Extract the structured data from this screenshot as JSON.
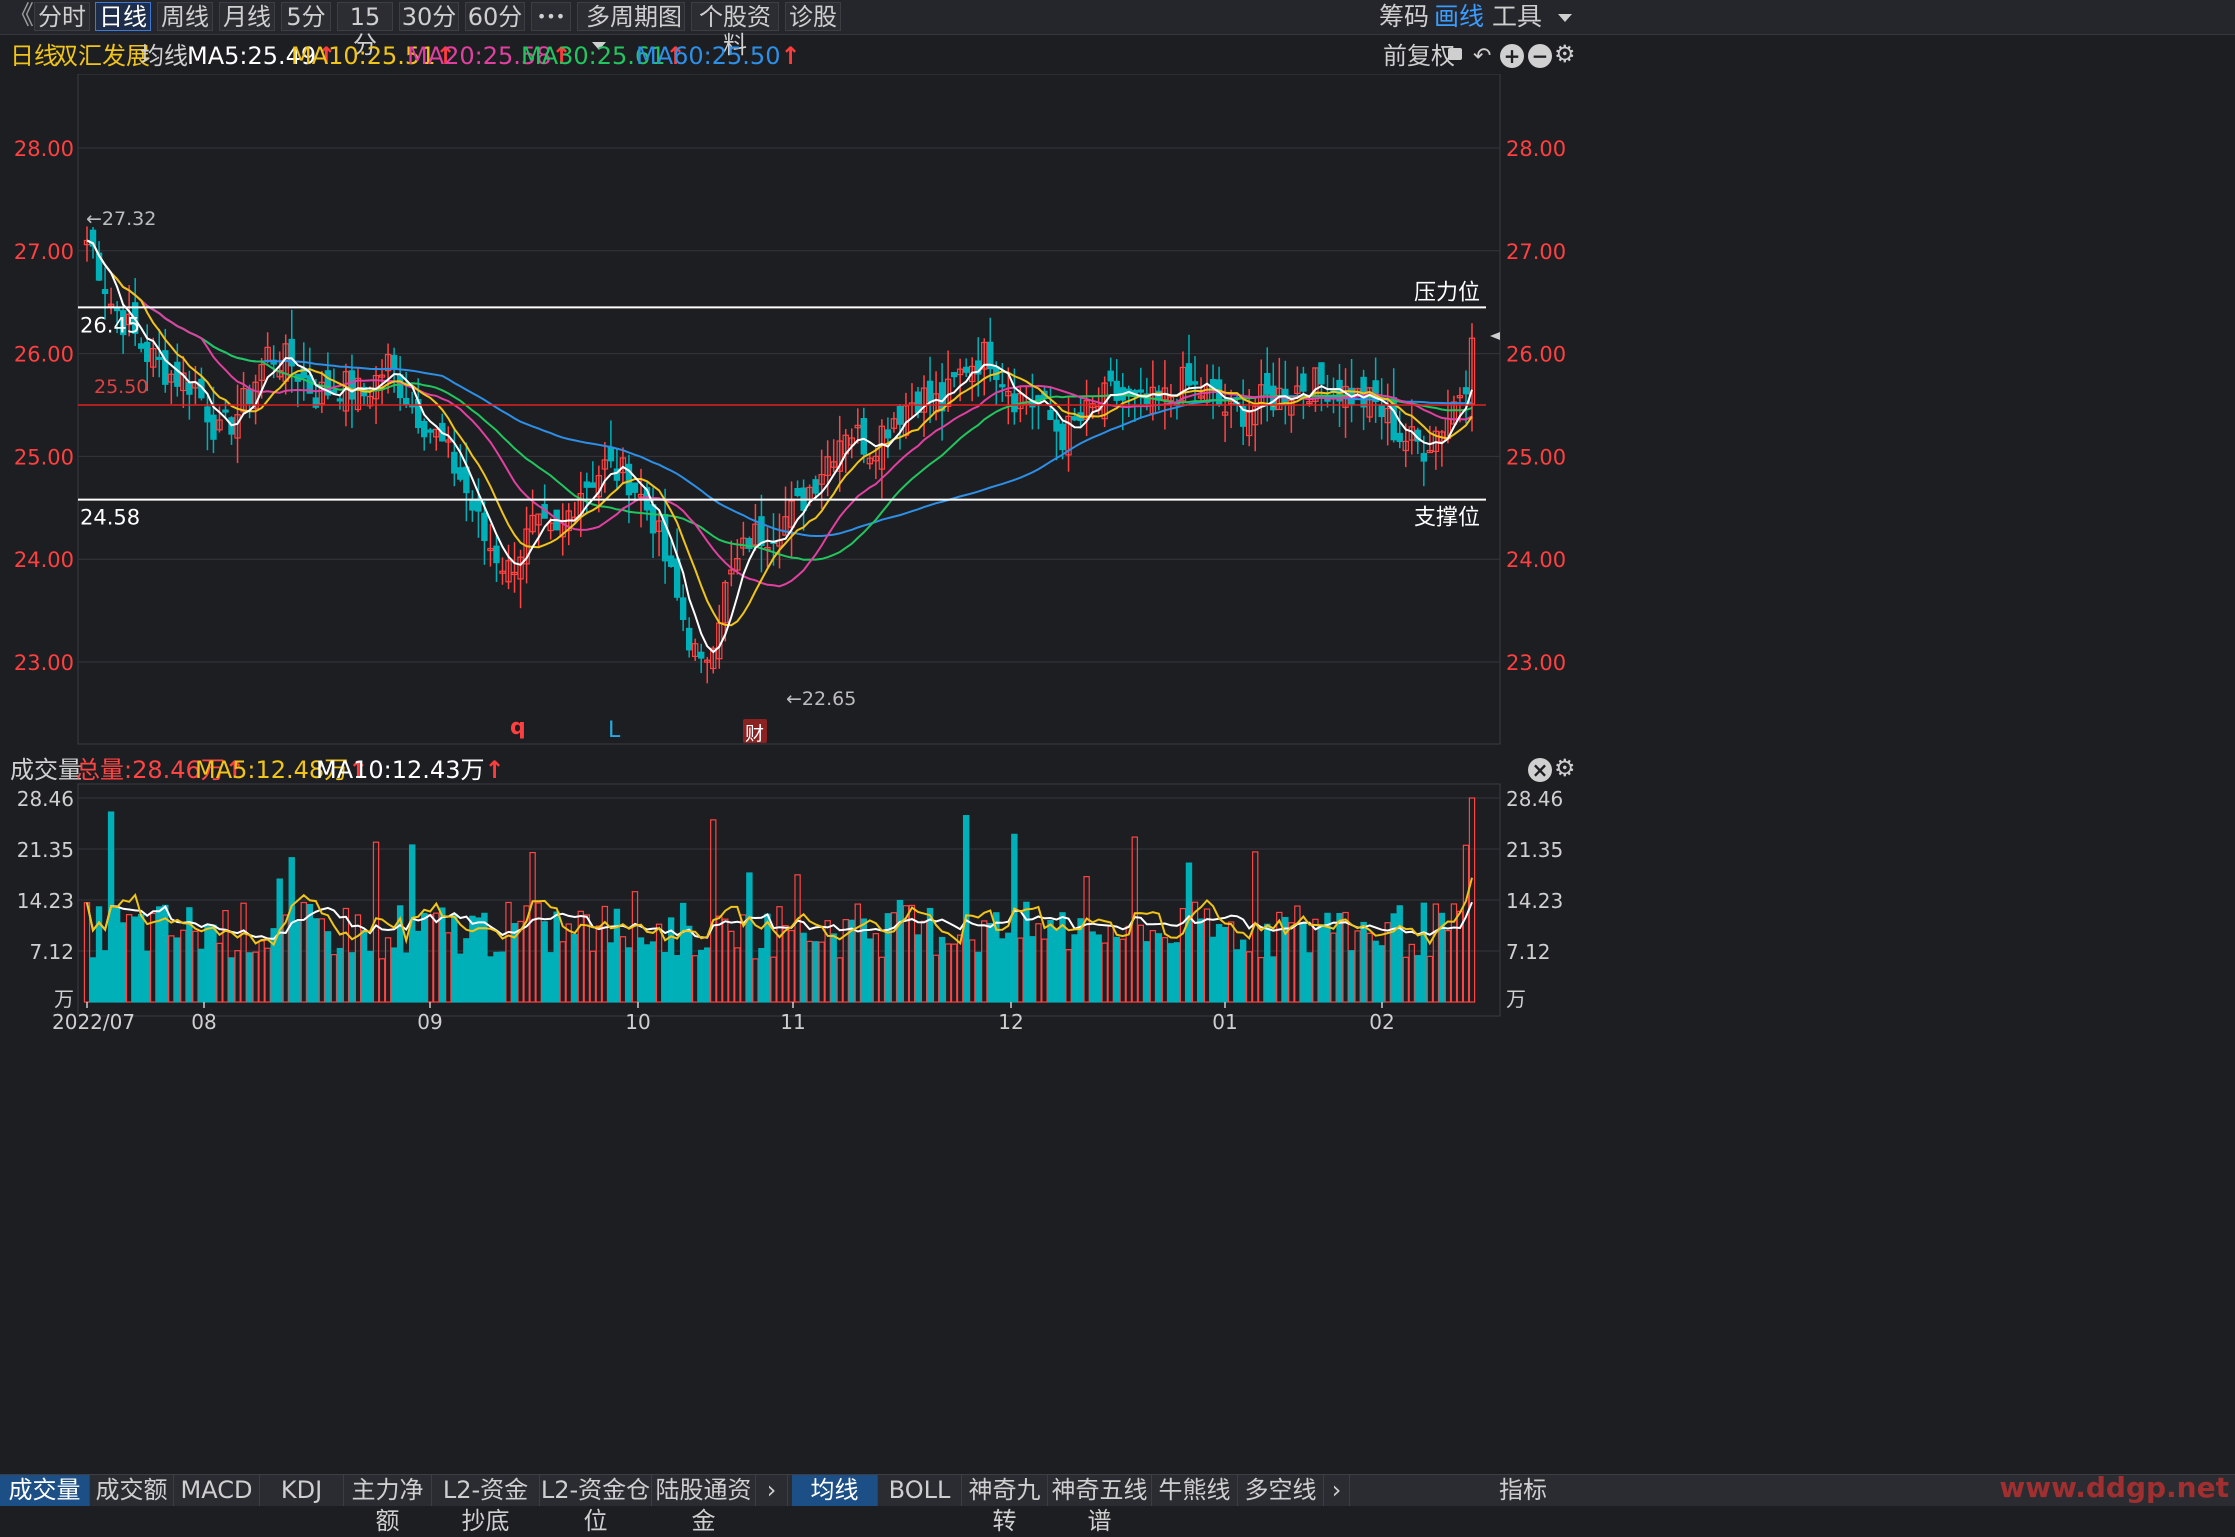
{
  "toolbar": {
    "back_glyph": "《",
    "periods": [
      "分时",
      "日线",
      "周线",
      "月线",
      "5分",
      "15分",
      "30分",
      "60分"
    ],
    "active_period": "日线",
    "more_glyph": "•••",
    "multi_period": "多周期图",
    "stock_info": "个股资料",
    "diagnose": "诊股",
    "chips": "筹码",
    "draw": "画线",
    "tools": "工具"
  },
  "info": {
    "period": "日线",
    "stock_name": "双汇发展",
    "avg_label": "均线",
    "ma5": "MA5:25.49",
    "ma10": "MA10:25.51",
    "ma20": "MA20:25.58",
    "ma30": "MA30:25.61",
    "ma60": "MA60:25.50",
    "adjust": "前复权",
    "up_arrow": "↑",
    "colors": {
      "ma5": "#ffffff",
      "ma10": "#f0c419",
      "ma20": "#e040a0",
      "ma30": "#22c55e",
      "ma60": "#2d8fe6"
    }
  },
  "volume_header": {
    "label": "成交量",
    "total": "总量:28.46万",
    "ma5": "MA5:12.48万",
    "ma10": "MA10:12.43万"
  },
  "bottom_tabs": {
    "left": [
      "成交量",
      "成交额",
      "MACD",
      "KDJ",
      "主力净额",
      "L2-资金抄底",
      "L2-资金仓位",
      "陆股通资金"
    ],
    "right": [
      "均线",
      "BOLL",
      "神奇九转",
      "神奇五线谱",
      "牛熊线",
      "多空线"
    ],
    "active_left": "成交量",
    "active_right": "均线",
    "more_glyph": "›",
    "watermark": "www.ddgp.net",
    "indicator_label": "指标"
  },
  "chart_data": {
    "type": "candlestick",
    "price_axis": {
      "ticks": [
        "28.00",
        "27.00",
        "26.00",
        "25.00",
        "24.00",
        "23.00"
      ],
      "ylim": [
        22.2,
        28.6
      ]
    },
    "date_labels": [
      "2022/07",
      "08",
      "09",
      "10",
      "11",
      "12",
      "01",
      "02"
    ],
    "annotations": {
      "high_marker": "←27.32",
      "low_marker": "←22.65",
      "resistance_label": "压力位",
      "resistance_value": "26.45",
      "support_label": "支撑位",
      "support_value": "24.58",
      "ref_value": "25.50",
      "marker_q": "q",
      "marker_L": "L",
      "marker_cai": "财"
    },
    "levels": {
      "resistance": 26.45,
      "support": 24.58,
      "reference": 25.5
    },
    "volume_axis": {
      "ticks": [
        "28.46",
        "21.35",
        "14.23",
        "7.12"
      ],
      "unit": "万",
      "ylim": [
        0,
        28.46
      ]
    },
    "colors": {
      "up": "#ff4444",
      "down": "#00b0b8"
    }
  }
}
